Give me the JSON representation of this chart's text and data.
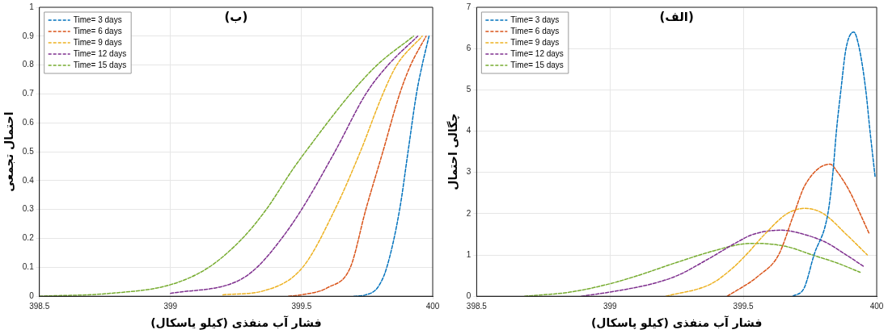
{
  "chart_data": [
    {
      "type": "line",
      "title": "(ب)",
      "xlabel": "فشار آب منفذی (کیلو یاسکال)",
      "ylabel": "احتمال تجمعی",
      "xlim": [
        398.5,
        400
      ],
      "xticks": [
        398.5,
        399,
        399.5,
        400
      ],
      "ylim": [
        0,
        1
      ],
      "yticks": [
        0,
        0.1,
        0.2,
        0.3,
        0.4,
        0.5,
        0.6,
        0.7,
        0.8,
        0.9,
        1
      ],
      "grid": true,
      "legend": "top left",
      "line_style": "dashed",
      "marker": "none",
      "series": [
        {
          "name": "Time= 3 days",
          "color": "#0072bd",
          "x": [
            399.7,
            399.745,
            399.79,
            399.825,
            399.874,
            399.906,
            399.938,
            399.96,
            399.986
          ],
          "values": [
            0,
            0.005,
            0.03,
            0.1,
            0.3,
            0.5,
            0.7,
            0.8,
            0.9
          ]
        },
        {
          "name": "Time= 6 days",
          "color": "#d95319",
          "x": [
            399.45,
            399.5,
            399.6,
            399.686,
            399.745,
            399.81,
            399.874,
            399.916,
            399.975
          ],
          "values": [
            0,
            0.005,
            0.03,
            0.1,
            0.3,
            0.5,
            0.7,
            0.8,
            0.9
          ]
        },
        {
          "name": "Time= 9 days",
          "color": "#edb120",
          "x": [
            399.2,
            399.36,
            399.504,
            399.627,
            399.724,
            399.81,
            399.863,
            399.96
          ],
          "values": [
            0.005,
            0.02,
            0.1,
            0.3,
            0.5,
            0.7,
            0.8,
            0.9
          ]
        },
        {
          "name": "Time= 12 days",
          "color": "#7e2f8e",
          "x": [
            399,
            399.25,
            399.33,
            399.424,
            399.5,
            399.627,
            399.745,
            399.83,
            399.943
          ],
          "values": [
            0.01,
            0.05,
            0.1,
            0.2,
            0.3,
            0.5,
            0.7,
            0.8,
            0.9
          ]
        },
        {
          "name": "Time= 15 days",
          "color": "#77ac30",
          "x": [
            398.5,
            398.77,
            399,
            399.146,
            399.274,
            399.365,
            399.467,
            399.515,
            399.686,
            399.788,
            399.927
          ],
          "values": [
            0,
            0.01,
            0.04,
            0.1,
            0.2,
            0.3,
            0.44,
            0.5,
            0.7,
            0.8,
            0.9
          ]
        }
      ]
    },
    {
      "type": "line",
      "title": "(الف)",
      "xlabel": "فشار آب منفذی (کیلو پاسکال)",
      "ylabel": "چگالی احتمال",
      "xlim": [
        398.5,
        400
      ],
      "xticks": [
        398.5,
        399,
        399.5,
        400
      ],
      "ylim": [
        0,
        7
      ],
      "yticks": [
        0,
        1,
        2,
        3,
        4,
        5,
        6,
        7
      ],
      "grid": true,
      "legend": "top left",
      "line_style": "dashed",
      "marker": "none",
      "series": [
        {
          "name": "Time= 3 days",
          "color": "#0072bd",
          "x": [
            399.686,
            399.728,
            399.765,
            399.817,
            399.836,
            399.849,
            399.866,
            399.885,
            399.914,
            399.935,
            399.959,
            399.975,
            399.994
          ],
          "values": [
            0,
            0.2,
            1,
            2,
            3,
            4,
            5,
            6,
            6.4,
            6,
            5,
            4,
            2.9
          ]
        },
        {
          "name": "Time= 6 days",
          "color": "#d95319",
          "x": [
            399.44,
            399.558,
            399.632,
            399.69,
            399.732,
            399.825,
            399.854,
            399.902,
            399.938,
            399.973
          ],
          "values": [
            0,
            0.5,
            1,
            2,
            2.7,
            3.2,
            3,
            2.5,
            2,
            1.5
          ]
        },
        {
          "name": "Time= 9 days",
          "color": "#edb120",
          "x": [
            399.21,
            399.379,
            399.463,
            399.51,
            399.58,
            399.664,
            399.732,
            399.8,
            399.886,
            399.965
          ],
          "values": [
            0,
            0.3,
            0.7,
            1,
            1.5,
            2,
            2.13,
            2,
            1.5,
            1
          ]
        },
        {
          "name": "Time= 12 days",
          "color": "#7e2f8e",
          "x": [
            398.893,
            398.998,
            399.157,
            399.252,
            399.368,
            399.474,
            399.537,
            399.643,
            399.727,
            399.811,
            399.886,
            399.952
          ],
          "values": [
            0,
            0.1,
            0.3,
            0.5,
            0.9,
            1.3,
            1.5,
            1.6,
            1.5,
            1.3,
            1,
            0.72
          ]
        },
        {
          "name": "Time= 15 days",
          "color": "#77ac30",
          "x": [
            398.68,
            398.85,
            398.998,
            399.104,
            399.241,
            399.389,
            399.505,
            399.553,
            399.664,
            399.759,
            399.854,
            399.938
          ],
          "values": [
            0,
            0.1,
            0.3,
            0.5,
            0.8,
            1.1,
            1.27,
            1.28,
            1.2,
            1,
            0.8,
            0.58
          ]
        }
      ]
    }
  ]
}
